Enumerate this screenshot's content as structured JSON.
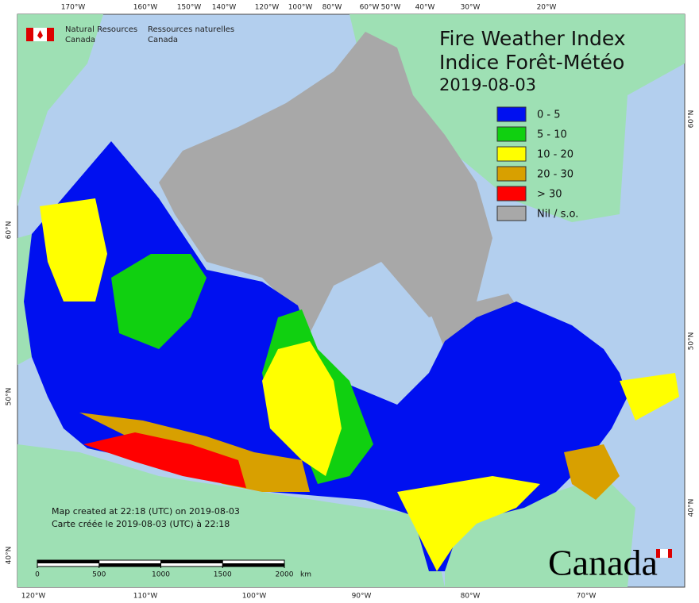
{
  "header": {
    "agency_en": [
      "Natural Resources",
      "Canada"
    ],
    "agency_fr": [
      "Ressources naturelles",
      "Canada"
    ]
  },
  "title": {
    "en": "Fire Weather Index",
    "fr": "Indice Forêt-Météo",
    "date": "2019-08-03"
  },
  "legend": [
    {
      "label": "0 - 5",
      "color": "#0010f0"
    },
    {
      "label": "5 - 10",
      "color": "#10d010"
    },
    {
      "label": "10 - 20",
      "color": "#ffff00"
    },
    {
      "label": "20 - 30",
      "color": "#d8a000"
    },
    {
      "label": "> 30",
      "color": "#ff0000"
    },
    {
      "label": "Nil / s.o.",
      "color": "#a8a8a8"
    }
  ],
  "graticule": {
    "top": [
      "170°W",
      "160°W",
      "150°W",
      "140°W",
      "120°W",
      "100°W",
      "80°W",
      "60°W",
      "50°W",
      "40°W",
      "30°W",
      "20°W"
    ],
    "bottom": [
      "120°W",
      "110°W",
      "100°W",
      "90°W",
      "80°W",
      "70°W"
    ],
    "left": [
      "60°N",
      "50°N",
      "40°N"
    ],
    "right": [
      "60°N",
      "50°N",
      "40°N"
    ]
  },
  "footer": {
    "en": "Map created at 22:18 (UTC) on 2019-08-03",
    "fr": "Carte créée le 2019-08-03 (UTC) à 22:18"
  },
  "scale_bar": {
    "ticks": [
      0,
      500,
      1000,
      1500,
      2000
    ],
    "unit": "km"
  },
  "wordmark": "Canada"
}
